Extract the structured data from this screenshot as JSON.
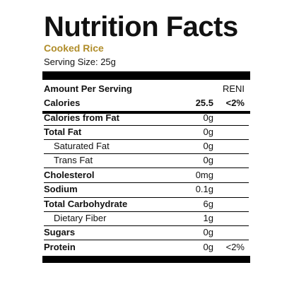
{
  "title": "Nutrition Facts",
  "product": "Cooked Rice",
  "serving": "Serving Size: 25g",
  "header": {
    "label": "Amount Per Serving",
    "dv": "RENI"
  },
  "calories": {
    "label": "Calories",
    "amount": "25.5",
    "dv": "<2%"
  },
  "rows": [
    {
      "label": "Calories from Fat",
      "amount": "0g",
      "dv": ""
    },
    {
      "label": "Total Fat",
      "amount": "0g",
      "dv": ""
    },
    {
      "label": "Saturated Fat",
      "amount": "0g",
      "dv": ""
    },
    {
      "label": "Trans Fat",
      "amount": "0g",
      "dv": ""
    },
    {
      "label": "Cholesterol",
      "amount": "0mg",
      "dv": ""
    },
    {
      "label": "Sodium",
      "amount": "0.1g",
      "dv": ""
    },
    {
      "label": "Total Carbohydrate",
      "amount": "6g",
      "dv": ""
    },
    {
      "label": "Dietary Fiber",
      "amount": "1g",
      "dv": ""
    },
    {
      "label": "Sugars",
      "amount": "0g",
      "dv": ""
    },
    {
      "label": "Protein",
      "amount": "0g",
      "dv": "<2%"
    }
  ],
  "colors": {
    "product": "#b08d2a",
    "rule": "#000000"
  }
}
